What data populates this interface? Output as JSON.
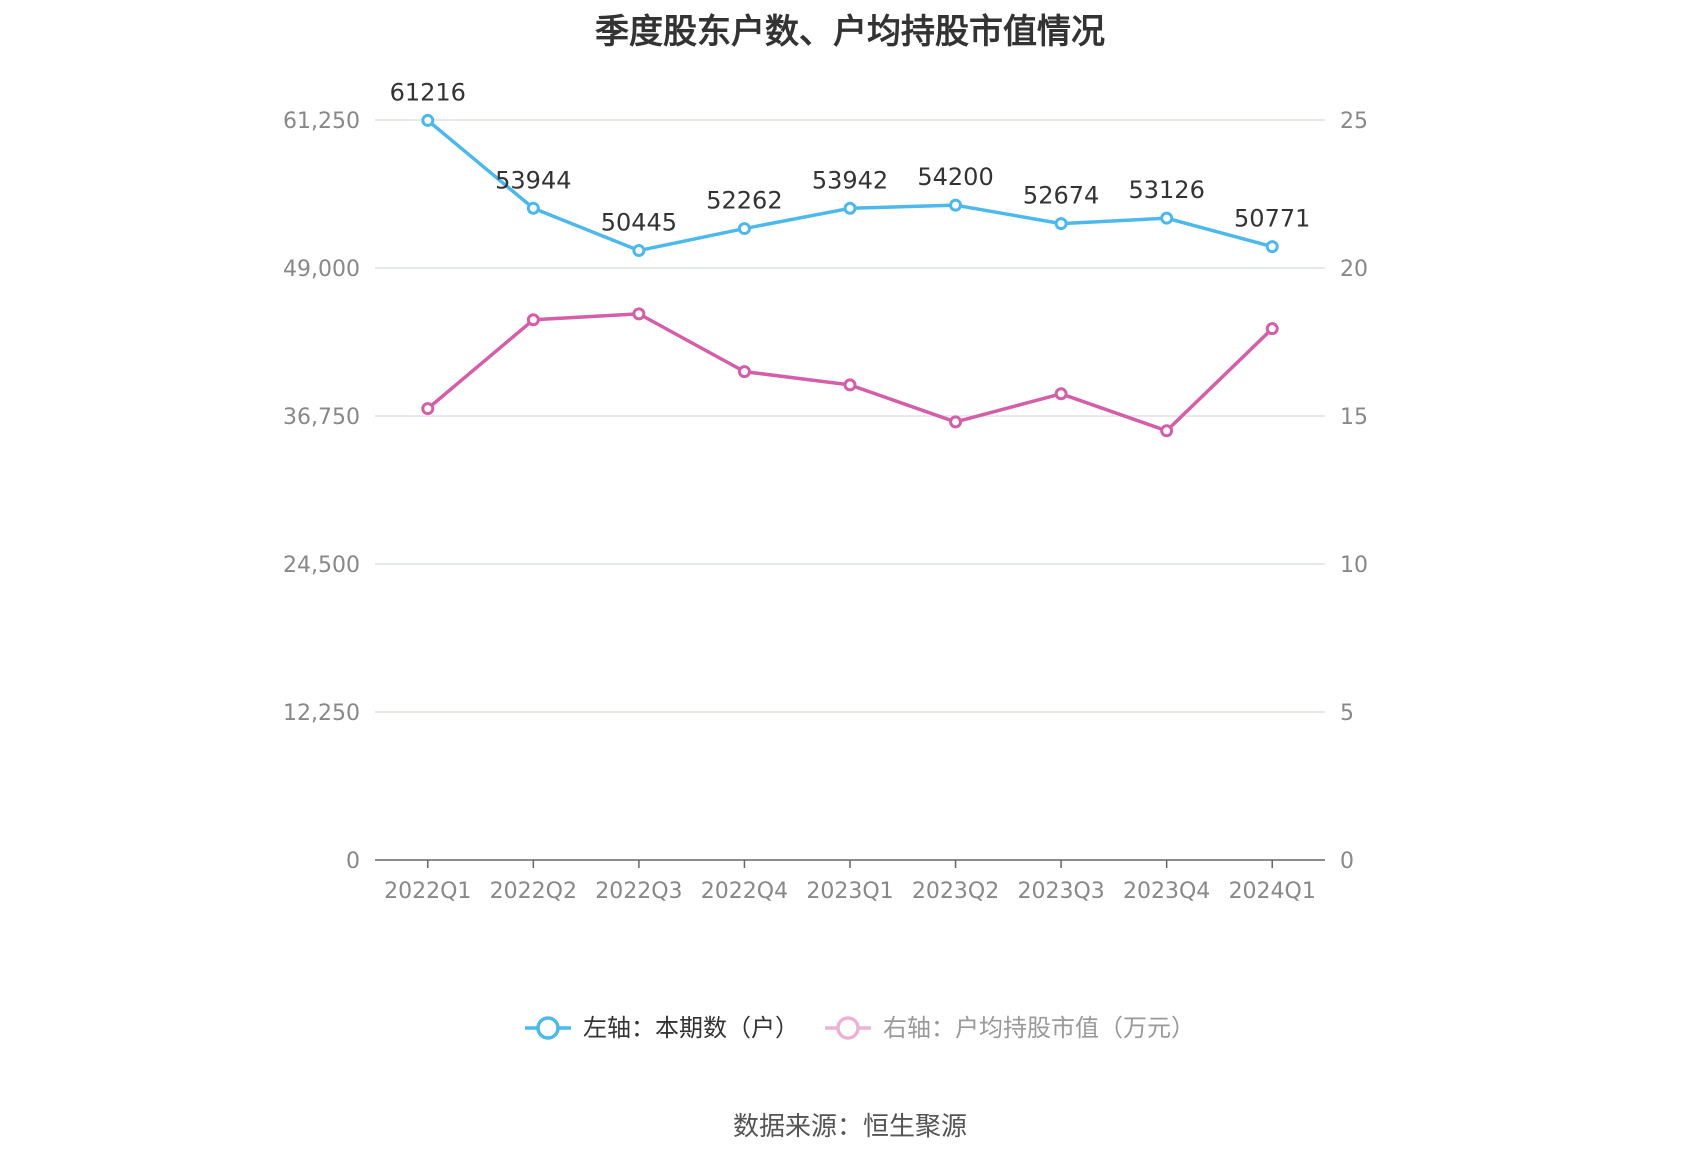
{
  "title": "季度股东户数、户均持股市值情况",
  "source": "数据来源：恒生聚源",
  "colors": {
    "left_series": "#4db8ec",
    "right_series": "#d45ea8",
    "grid": "#dde3ea",
    "axis": "#666666"
  },
  "chart_data": {
    "type": "line",
    "categories": [
      "2022Q1",
      "2022Q2",
      "2022Q3",
      "2022Q4",
      "2023Q1",
      "2023Q2",
      "2023Q3",
      "2023Q4",
      "2024Q1"
    ],
    "left_axis": {
      "min": 0,
      "max": 61250,
      "ticks": [
        "0",
        "12,250",
        "24,500",
        "36,750",
        "49,000",
        "61,250"
      ],
      "tick_values": [
        0,
        12250,
        24500,
        36750,
        49000,
        61250
      ]
    },
    "right_axis": {
      "min": 0,
      "max": 25,
      "ticks": [
        "0",
        "5",
        "10",
        "15",
        "20",
        "25"
      ],
      "tick_values": [
        0,
        5,
        10,
        15,
        20,
        25
      ]
    },
    "series": [
      {
        "name": "左轴：本期数（户）",
        "axis": "left",
        "values": [
          61216,
          53944,
          50445,
          52262,
          53942,
          54200,
          52674,
          53126,
          50771
        ],
        "labels": [
          "61216",
          "53944",
          "50445",
          "52262",
          "53942",
          "54200",
          "52674",
          "53126",
          "50771"
        ]
      },
      {
        "name": "右轴：户均持股市值（万元）",
        "axis": "right",
        "values": [
          15.25,
          18.25,
          18.45,
          16.5,
          16.05,
          14.8,
          15.75,
          14.5,
          17.95
        ]
      }
    ],
    "grid": true,
    "legend_position": "bottom"
  }
}
